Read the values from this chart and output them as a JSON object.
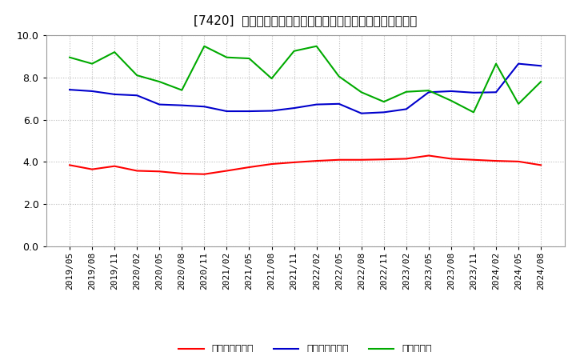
{
  "title": "[7420]  売上債権回転率、買入債務回転率、在庫回転率の推移",
  "ylim": [
    0.0,
    10.0
  ],
  "yticks": [
    0.0,
    2.0,
    4.0,
    6.0,
    8.0,
    10.0
  ],
  "dates": [
    "2019/05",
    "2019/08",
    "2019/11",
    "2020/02",
    "2020/05",
    "2020/08",
    "2020/11",
    "2021/02",
    "2021/05",
    "2021/08",
    "2021/11",
    "2022/02",
    "2022/05",
    "2022/08",
    "2022/11",
    "2023/02",
    "2023/05",
    "2023/08",
    "2023/11",
    "2024/02",
    "2024/05",
    "2024/08"
  ],
  "series_receivables": [
    3.85,
    3.65,
    3.8,
    3.58,
    3.55,
    3.45,
    3.42,
    3.58,
    3.75,
    3.9,
    3.98,
    4.05,
    4.1,
    4.1,
    4.12,
    4.15,
    4.3,
    4.15,
    4.1,
    4.05,
    4.02,
    3.85
  ],
  "series_payables": [
    7.42,
    7.35,
    7.2,
    7.15,
    6.72,
    6.68,
    6.62,
    6.4,
    6.4,
    6.42,
    6.55,
    6.72,
    6.75,
    6.3,
    6.35,
    6.5,
    7.3,
    7.35,
    7.28,
    7.3,
    8.65,
    8.55
  ],
  "series_inventory": [
    8.95,
    8.65,
    9.2,
    8.1,
    7.8,
    7.4,
    9.48,
    8.95,
    8.9,
    7.95,
    9.25,
    9.48,
    8.05,
    7.3,
    6.85,
    7.32,
    7.38,
    6.9,
    6.35,
    8.65,
    6.75,
    7.8
  ],
  "color_receivables": "#ff0000",
  "color_payables": "#0000cc",
  "color_inventory": "#00aa00",
  "legend_receivables": "売上債権回転率",
  "legend_payables": "買入債務回転率",
  "legend_inventory": "在庫回転率",
  "background_color": "#ffffff",
  "grid_color": "#bbbbbb",
  "linewidth": 1.5,
  "title_fontsize": 11,
  "tick_fontsize": 8,
  "legend_fontsize": 9
}
